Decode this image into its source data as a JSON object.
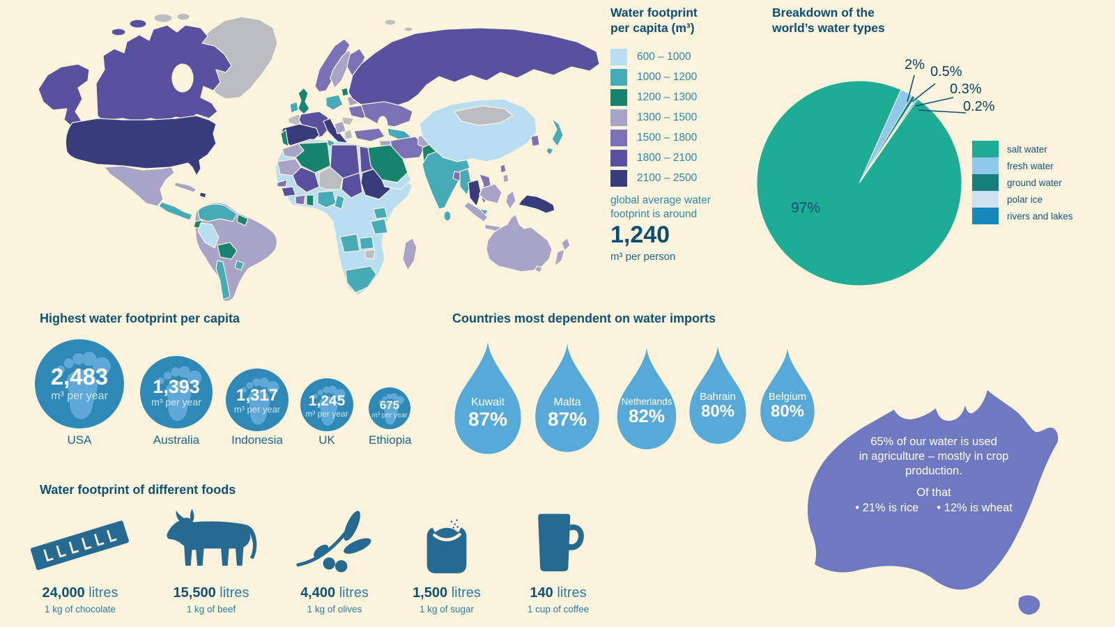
{
  "colors": {
    "background": "#fbf3dc",
    "heading_text": "#0e5174",
    "body_teal_text": "#2e86a6",
    "dark_value_text": "#0d4d73",
    "circle_blue": "#2f89b6",
    "footprint_light_blue": "#5fa9d8",
    "drop_blue": "#57a9d7",
    "food_icon_blue": "#266a91",
    "australia_fill": "#6e79c2",
    "no_data_gray": "#bcbdc1"
  },
  "map_legend": {
    "title": "Water footprint\nper capita (m³)",
    "items": [
      {
        "range": "600 – 1000",
        "color": "#b9def2"
      },
      {
        "range": "1000 – 1200",
        "color": "#46abb6"
      },
      {
        "range": "1200 – 1300",
        "color": "#18836f"
      },
      {
        "range": "1300 – 1500",
        "color": "#a7a4c8"
      },
      {
        "range": "1500 – 1800",
        "color": "#7b72b6"
      },
      {
        "range": "1800 – 2100",
        "color": "#57519f"
      },
      {
        "range": "2100 – 2500",
        "color": "#363c7c"
      }
    ],
    "note": "global average water\nfootprint is around",
    "average_value": "1,240",
    "average_unit": "m³ per person"
  },
  "pie_section": {
    "title": "Breakdown of the\nworld’s water types"
  },
  "chart_data": [
    {
      "type": "pie",
      "title": "Breakdown of the world's water types",
      "labels": [
        "salt water",
        "fresh water",
        "ground water",
        "polar ice",
        "rivers and lakes"
      ],
      "values": [
        97,
        2,
        0.5,
        0.3,
        0.2
      ],
      "display_values": [
        "97%",
        "2%",
        "0.5%",
        "0.3%",
        "0.2%"
      ],
      "colors": [
        "#1fac94",
        "#8fc8ea",
        "#15807a",
        "#cde1f0",
        "#1689ba"
      ],
      "legend_position": "right"
    },
    {
      "type": "heatmap",
      "subtype": "world-choropleth",
      "title": "Water footprint per capita (m³)",
      "bins": [
        "600 – 1000",
        "1000 – 1200",
        "1200 – 1300",
        "1300 – 1500",
        "1500 – 1800",
        "1800 – 2100",
        "2100 – 2500"
      ],
      "bin_colors": [
        "#b9def2",
        "#46abb6",
        "#18836f",
        "#a7a4c8",
        "#7b72b6",
        "#57519f",
        "#363c7c"
      ],
      "no_data_color": "#bcbdc1",
      "global_average_value": "1,240",
      "global_average_unit": "m³ per person"
    },
    {
      "type": "bar",
      "subtype": "pictogram-footprint-circles",
      "title": "Highest water footprint per capita",
      "categories": [
        "USA",
        "Australia",
        "Indonesia",
        "UK",
        "Ethiopia"
      ],
      "values": [
        2483,
        1393,
        1317,
        1245,
        675
      ],
      "unit": "m³ per year"
    },
    {
      "type": "bar",
      "subtype": "pictogram-water-drops",
      "title": "Countries most dependent on water imports",
      "categories": [
        "Kuwait",
        "Malta",
        "Netherlands",
        "Bahrain",
        "Belgium"
      ],
      "values": [
        87,
        87,
        82,
        80,
        80
      ],
      "unit": "%"
    },
    {
      "type": "bar",
      "subtype": "pictogram-foods",
      "title": "Water footprint of different foods",
      "categories": [
        "1 kg of chocolate",
        "1 kg of beef",
        "1 kg of olives",
        "1 kg of sugar",
        "1 cup of coffee"
      ],
      "values": [
        24000,
        15500,
        4400,
        1500,
        140
      ],
      "unit": "litres"
    }
  ],
  "footprints": {
    "heading": "Highest water footprint per capita",
    "items": [
      {
        "country": "USA",
        "value": "2,483",
        "unit": "m³ per year"
      },
      {
        "country": "Australia",
        "value": "1,393",
        "unit": "m³ per year"
      },
      {
        "country": "Indonesia",
        "value": "1,317",
        "unit": "m³ per year"
      },
      {
        "country": "UK",
        "value": "1,245",
        "unit": "m³ per year"
      },
      {
        "country": "Ethiopia",
        "value": "675",
        "unit": "m³ per year"
      }
    ]
  },
  "imports": {
    "heading": "Countries most dependent on water imports",
    "items": [
      {
        "country": "Kuwait",
        "pct": "87%"
      },
      {
        "country": "Malta",
        "pct": "87%"
      },
      {
        "country": "Netherlands",
        "pct": "82%"
      },
      {
        "country": "Bahrain",
        "pct": "80%"
      },
      {
        "country": "Belgium",
        "pct": "80%"
      }
    ]
  },
  "australia": {
    "fact_main": "65% of our water is used\nin agriculture – mostly in crop\nproduction.",
    "fact_sub_title": "Of that",
    "fact_point_1": "• 21% is rice",
    "fact_point_2": "• 12% is wheat"
  },
  "foods": {
    "heading": "Water footprint of different foods",
    "items": [
      {
        "value": "24,000",
        "unit": "litres",
        "desc": "1 kg of chocolate",
        "icon": "chocolate-bar-icon"
      },
      {
        "value": "15,500",
        "unit": "litres",
        "desc": "1 kg of beef",
        "icon": "cow-icon"
      },
      {
        "value": "4,400",
        "unit": "litres",
        "desc": "1 kg of olives",
        "icon": "olive-branch-icon"
      },
      {
        "value": "1,500",
        "unit": "litres",
        "desc": "1 kg of sugar",
        "icon": "sugar-sack-icon"
      },
      {
        "value": "140",
        "unit": "litres",
        "desc": "1 cup of coffee",
        "icon": "coffee-mug-icon"
      }
    ]
  }
}
